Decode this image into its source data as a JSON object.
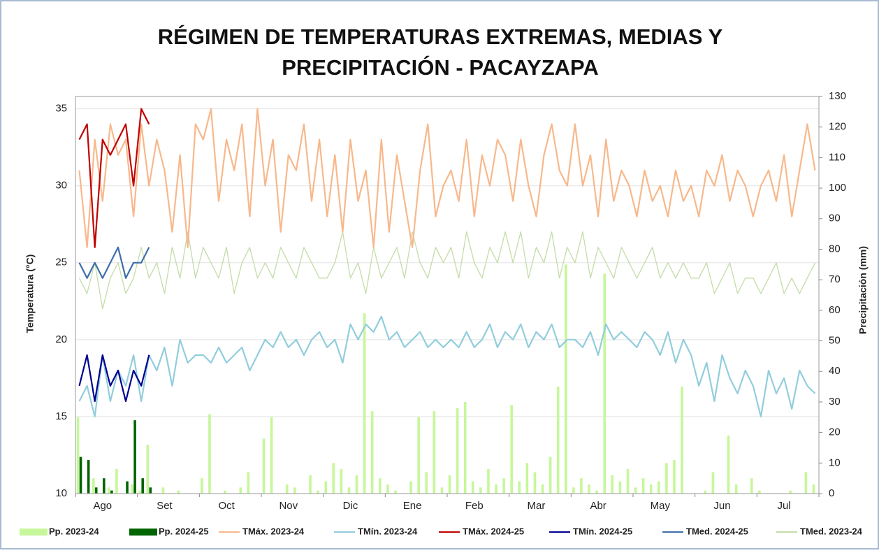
{
  "chart_data": {
    "type": "line",
    "title": [
      "RÉGIMEN DE TEMPERATURAS EXTREMAS, MEDIAS Y",
      "PRECIPITACIÓN - PACAYZAPA"
    ],
    "y_label": "Temperatura (°C)",
    "y2_label": "Precipitación (mm)",
    "categories": [
      null,
      null,
      null,
      "Ago",
      null,
      null,
      null,
      null,
      null,
      null,
      null,
      "Set",
      null,
      null,
      null,
      null,
      null,
      null,
      null,
      "Oct",
      null,
      null,
      null,
      null,
      null,
      null,
      null,
      "Nov",
      null,
      null,
      null,
      null,
      null,
      null,
      null,
      "Dic",
      null,
      null,
      null,
      null,
      null,
      null,
      null,
      "Ene",
      null,
      null,
      null,
      null,
      null,
      null,
      null,
      "Feb",
      null,
      null,
      null,
      null,
      null,
      null,
      null,
      "Mar",
      null,
      null,
      null,
      null,
      null,
      null,
      null,
      "Abr",
      null,
      null,
      null,
      null,
      null,
      null,
      null,
      "May",
      null,
      null,
      null,
      null,
      null,
      null,
      null,
      "Jun",
      null,
      null,
      null,
      null,
      null,
      null,
      null,
      "Jul",
      null,
      null,
      null,
      null
    ],
    "ylim": [
      10,
      35.8
    ],
    "yticks": [
      10,
      15,
      20,
      25,
      30,
      35
    ],
    "y2lim": [
      0,
      130
    ],
    "y2ticks": [
      0,
      10,
      20,
      30,
      40,
      50,
      60,
      70,
      80,
      90,
      100,
      110,
      120,
      130
    ],
    "grid": true,
    "legend": "bottom",
    "series": [
      {
        "name": "Pp. 2023-24",
        "type": "bar",
        "axis": "y2",
        "color": "#c6f79a",
        "values": [
          25,
          0,
          5,
          0,
          2,
          8,
          0,
          3,
          1,
          16,
          0,
          2,
          0,
          1,
          0,
          0,
          5,
          26,
          0,
          1,
          0,
          2,
          7,
          0,
          18,
          25,
          0,
          3,
          2,
          0,
          6,
          1,
          4,
          10,
          8,
          2,
          6,
          59,
          27,
          5,
          3,
          1,
          0,
          4,
          25,
          7,
          27,
          2,
          6,
          28,
          30,
          4,
          2,
          8,
          3,
          5,
          29,
          4,
          10,
          7,
          3,
          12,
          35,
          75,
          2,
          5,
          3,
          1,
          72,
          6,
          4,
          8,
          2,
          5,
          3,
          4,
          10,
          11,
          35,
          0,
          0,
          1,
          7,
          0,
          19,
          3,
          0,
          5,
          1,
          0,
          0,
          0,
          1,
          0,
          7,
          3
        ]
      },
      {
        "name": "Pp. 2024-25",
        "type": "bar",
        "axis": "y2",
        "color": "#006400",
        "values": [
          12,
          11,
          2,
          5,
          1,
          0,
          4,
          24,
          5,
          2,
          null,
          null,
          null,
          null,
          null,
          null,
          null,
          null,
          null,
          null,
          null,
          null,
          null,
          null,
          null,
          null,
          null,
          null,
          null,
          null,
          null,
          null,
          null,
          null,
          null,
          null,
          null,
          null,
          null,
          null,
          null,
          null,
          null,
          null,
          null,
          null,
          null,
          null,
          null,
          null,
          null,
          null,
          null,
          null,
          null,
          null,
          null,
          null,
          null,
          null,
          null,
          null,
          null,
          null,
          null,
          null,
          null,
          null,
          null,
          null,
          null,
          null,
          null,
          null,
          null,
          null,
          null,
          null,
          null,
          null,
          null,
          null,
          null,
          null,
          null,
          null,
          null,
          null,
          null,
          null,
          null,
          null,
          null,
          null,
          null,
          null
        ]
      },
      {
        "name": "TMáx. 2023-24",
        "type": "line",
        "color": "#f8b88b",
        "width": 2.2,
        "values": [
          31,
          26,
          33,
          29,
          34,
          32,
          33,
          28,
          34,
          30,
          33,
          31,
          27,
          32,
          26,
          34,
          33,
          35,
          29,
          33,
          31,
          34,
          28,
          35,
          30,
          33,
          27,
          32,
          31,
          34,
          29,
          33,
          28,
          32,
          27,
          33,
          29,
          31,
          26,
          33,
          27,
          32,
          29,
          26,
          31,
          34,
          28,
          30,
          31,
          29,
          33,
          28,
          32,
          30,
          33,
          32,
          29,
          33,
          30,
          28,
          32,
          34,
          31,
          30,
          34,
          30,
          32,
          28,
          33,
          29,
          31,
          30,
          28,
          31,
          29,
          30,
          28,
          31,
          29,
          30,
          28,
          31,
          30,
          32,
          29,
          31,
          30,
          28,
          30,
          31,
          29,
          32,
          28,
          31,
          34,
          31
        ]
      },
      {
        "name": "TMín. 2023-24",
        "type": "line",
        "color": "#92cddc",
        "width": 2.2,
        "values": [
          16,
          17,
          15,
          19,
          16,
          18,
          17,
          19,
          16,
          19,
          18,
          19.5,
          17,
          20,
          18.5,
          19,
          19,
          18.5,
          19.5,
          18.5,
          19,
          19.5,
          18,
          19,
          20,
          19.5,
          20.5,
          19.5,
          20,
          19,
          20,
          20.5,
          19.5,
          20,
          18.5,
          21,
          20,
          21,
          20.5,
          21.5,
          20,
          20.5,
          19.5,
          20,
          20.5,
          19.5,
          20,
          19.5,
          20,
          19.5,
          20.5,
          19.5,
          20,
          21,
          19.5,
          20.5,
          20,
          21,
          19.5,
          20.5,
          20,
          21,
          19.5,
          20,
          20,
          19.5,
          20.5,
          19,
          21,
          20,
          20.5,
          20,
          19.5,
          20.5,
          20,
          19,
          20.5,
          18.5,
          20,
          19,
          17,
          18.5,
          16,
          19,
          17.5,
          16.5,
          18,
          17,
          15,
          18,
          16.5,
          17.5,
          15.5,
          18,
          17,
          16.5
        ]
      },
      {
        "name": "TMáx. 2024-25",
        "type": "line",
        "color": "#c00000",
        "width": 2.2,
        "values": [
          33,
          34,
          26,
          33,
          32,
          33,
          34,
          30,
          35,
          34,
          null,
          null,
          null,
          null,
          null,
          null,
          null,
          null,
          null,
          null,
          null,
          null,
          null,
          null,
          null,
          null,
          null,
          null,
          null,
          null,
          null,
          null,
          null,
          null,
          null,
          null,
          null,
          null,
          null,
          null,
          null,
          null,
          null,
          null,
          null,
          null,
          null,
          null,
          null,
          null,
          null,
          null,
          null,
          null,
          null,
          null,
          null,
          null,
          null,
          null,
          null,
          null,
          null,
          null,
          null,
          null,
          null,
          null,
          null,
          null,
          null,
          null,
          null,
          null,
          null,
          null,
          null,
          null,
          null,
          null,
          null,
          null,
          null,
          null,
          null,
          null,
          null,
          null,
          null,
          null,
          null,
          null,
          null,
          null,
          null,
          null
        ]
      },
      {
        "name": "TMín. 2024-25",
        "type": "line",
        "color": "#000090",
        "width": 2.2,
        "values": [
          17,
          19,
          16,
          19,
          17,
          18,
          16,
          18,
          17,
          19,
          null,
          null,
          null,
          null,
          null,
          null,
          null,
          null,
          null,
          null,
          null,
          null,
          null,
          null,
          null,
          null,
          null,
          null,
          null,
          null,
          null,
          null,
          null,
          null,
          null,
          null,
          null,
          null,
          null,
          null,
          null,
          null,
          null,
          null,
          null,
          null,
          null,
          null,
          null,
          null,
          null,
          null,
          null,
          null,
          null,
          null,
          null,
          null,
          null,
          null,
          null,
          null,
          null,
          null,
          null,
          null,
          null,
          null,
          null,
          null,
          null,
          null,
          null,
          null,
          null,
          null,
          null,
          null,
          null,
          null,
          null,
          null,
          null,
          null,
          null,
          null,
          null,
          null,
          null,
          null,
          null,
          null,
          null,
          null,
          null,
          null
        ]
      },
      {
        "name": "TMed. 2024-25",
        "type": "line",
        "color": "#3e6fa8",
        "width": 2.2,
        "values": [
          25,
          24,
          25,
          24,
          25,
          26,
          24,
          25,
          25,
          26,
          null,
          null,
          null,
          null,
          null,
          null,
          null,
          null,
          null,
          null,
          null,
          null,
          null,
          null,
          null,
          null,
          null,
          null,
          null,
          null,
          null,
          null,
          null,
          null,
          null,
          null,
          null,
          null,
          null,
          null,
          null,
          null,
          null,
          null,
          null,
          null,
          null,
          null,
          null,
          null,
          null,
          null,
          null,
          null,
          null,
          null,
          null,
          null,
          null,
          null,
          null,
          null,
          null,
          null,
          null,
          null,
          null,
          null,
          null,
          null,
          null,
          null,
          null,
          null,
          null,
          null,
          null,
          null,
          null,
          null,
          null,
          null,
          null,
          null,
          null,
          null,
          null,
          null,
          null,
          null,
          null,
          null,
          null,
          null,
          null,
          null
        ]
      },
      {
        "name": "TMed. 2023-24",
        "type": "line",
        "color": "#c4dca8",
        "width": 1.3,
        "values": [
          24,
          23,
          25,
          22,
          24,
          25,
          23,
          24,
          26,
          24,
          25,
          23,
          26,
          24,
          27,
          24,
          26,
          25,
          24,
          26,
          23,
          25,
          26,
          24,
          25,
          24,
          26,
          25,
          24,
          26,
          25,
          24,
          24,
          25,
          27,
          24,
          25,
          23,
          26,
          24,
          25,
          26,
          24,
          27,
          25,
          24,
          26,
          25,
          26,
          24,
          27,
          25,
          24,
          26,
          25,
          27,
          25,
          27,
          24,
          26,
          25,
          27,
          24,
          26,
          25,
          27,
          24,
          26,
          25,
          24,
          26,
          25,
          24,
          25,
          26,
          24,
          25,
          24,
          25,
          24,
          24,
          25,
          23,
          24,
          25,
          23,
          24,
          24,
          23,
          24,
          25,
          23,
          24,
          23,
          24,
          25
        ]
      }
    ]
  }
}
